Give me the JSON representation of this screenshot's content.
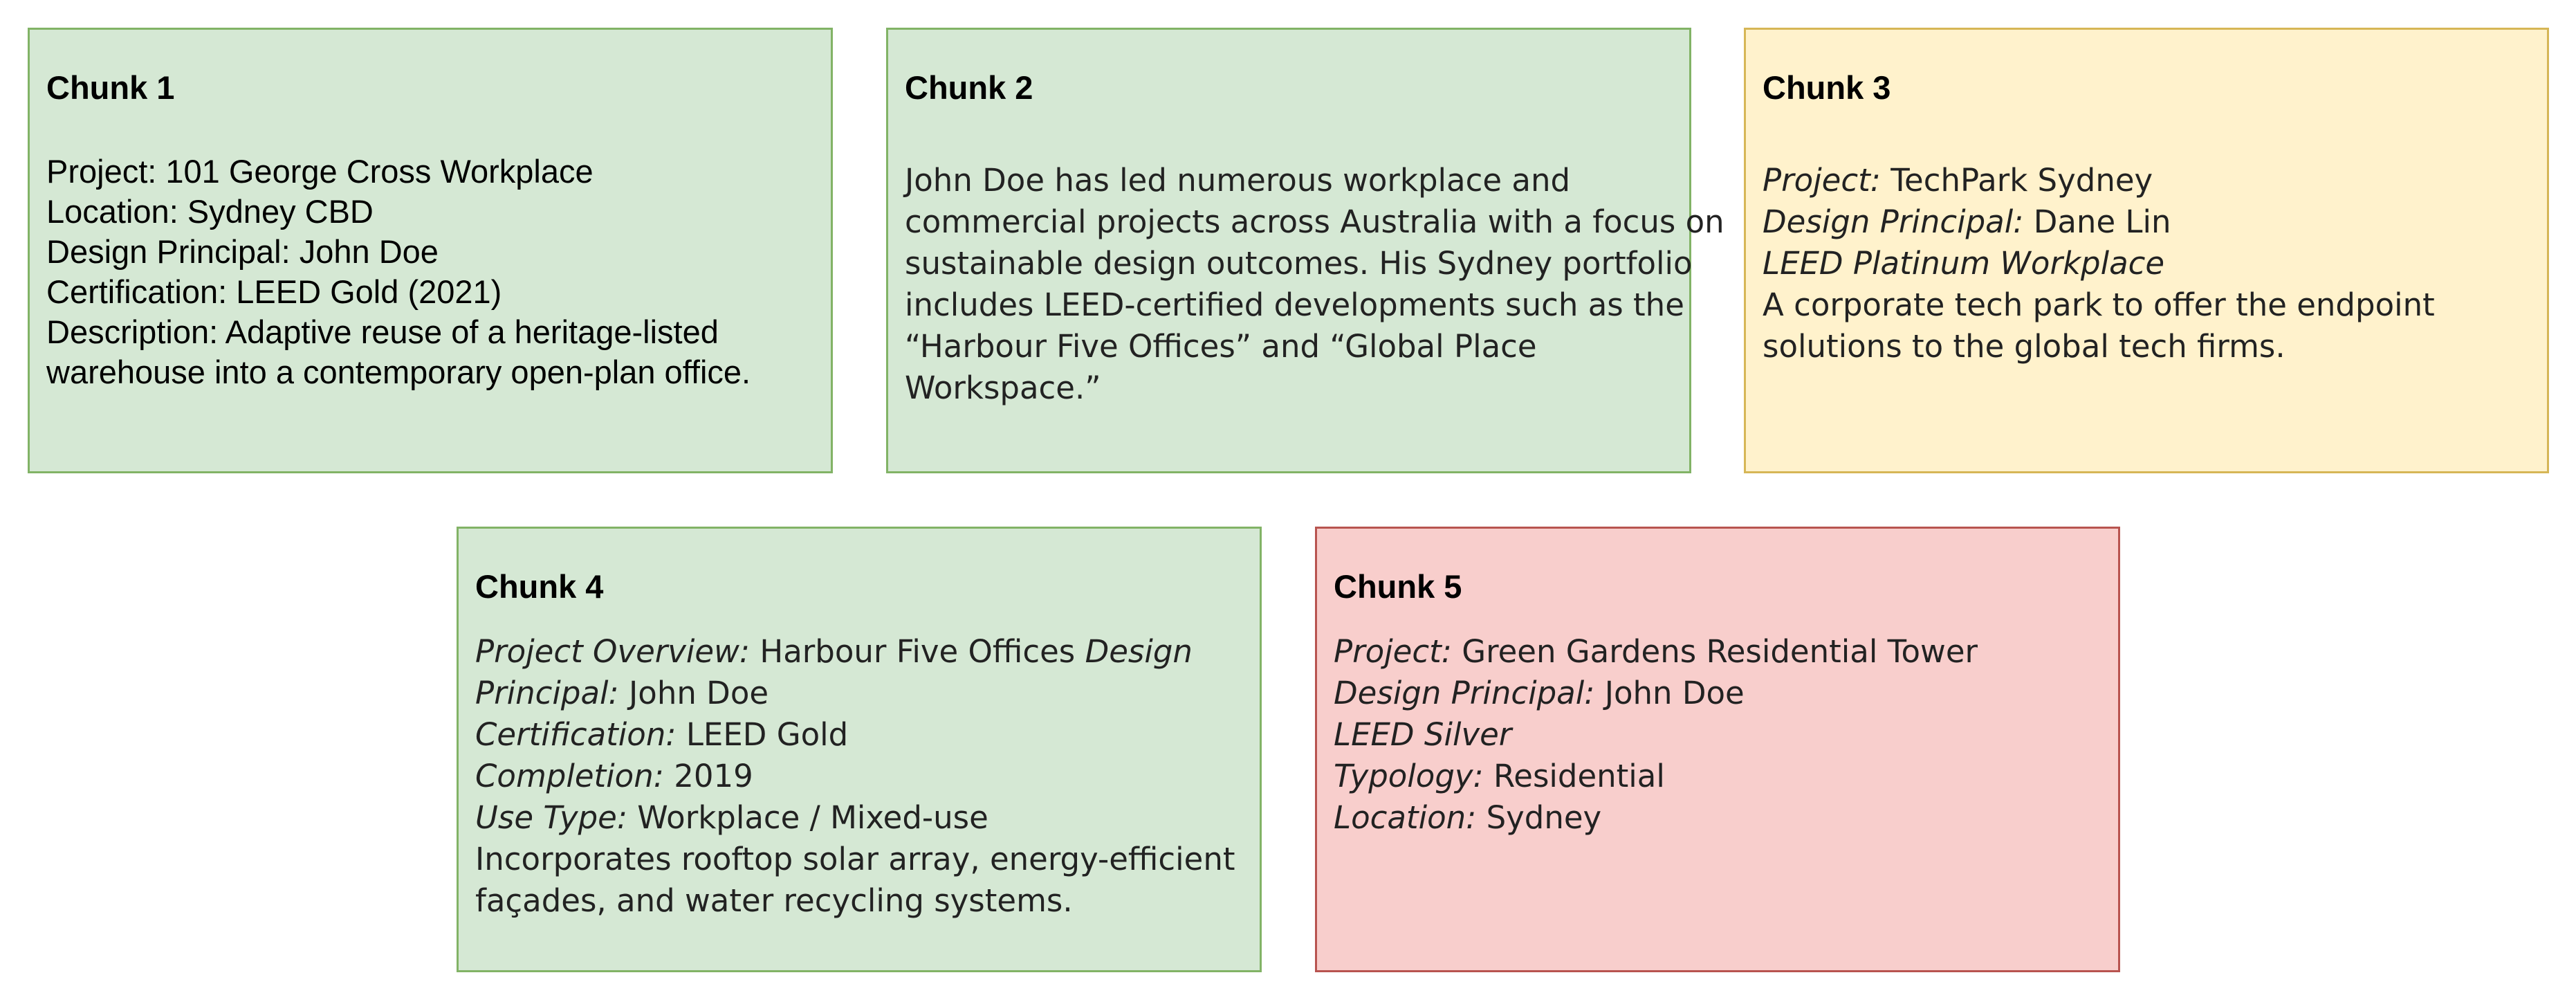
{
  "chunks": [
    {
      "title": "Chunk 1",
      "color": "#d5e8d4",
      "border_color": "#82b366",
      "lines": [
        "Project: 101 George Cross Workplace",
        "Location: Sydney CBD",
        "Design Principal: John Doe",
        "Certification: LEED Gold (2021)",
        "Description: Adaptive reuse of a heritage-listed",
        "warehouse into a contemporary open-plan office."
      ]
    },
    {
      "title": "Chunk 2",
      "color": "#d5e8d4",
      "border_color": "#82b366",
      "lines": [
        "John Doe has led numerous workplace and",
        "commercial projects across Australia with a focus on",
        "sustainable design outcomes. His Sydney portfolio",
        "includes LEED-certified developments such as the",
        "“Harbour Five Offices” and “Global Place",
        "Workspace.”"
      ]
    },
    {
      "title": "Chunk 3",
      "color": "#fff2cc",
      "border_color": "#d6b656",
      "project_label": "Project:",
      "project_value": " TechPark Sydney",
      "principal_label": "Design Principal:",
      "principal_value": " Dane Lin",
      "leed": "LEED Platinum Workplace",
      "desc_line1": "A corporate tech park to offer the endpoint",
      "desc_line2": "solutions to the global tech firms."
    },
    {
      "title": "Chunk 4",
      "color": "#d5e8d4",
      "border_color": "#82b366",
      "overview_label": "Project Overview:",
      "overview_value": " Harbour Five Offices ",
      "design_word": "Design",
      "principal_word": "Principal:",
      "principal_value": " John Doe",
      "cert_label": "Certification:",
      "cert_value": " LEED Gold",
      "completion_label": "Completion:",
      "completion_value": " 2019",
      "use_label": "Use Type:",
      "use_value": " Workplace / Mixed-use",
      "desc_line1": "Incorporates rooftop solar array, energy-efficient",
      "desc_line2": "façades, and water recycling systems."
    },
    {
      "title": "Chunk 5",
      "color": "#f8cecc",
      "border_color": "#b85450",
      "project_label": "Project:",
      "project_value": " Green Gardens Residential Tower",
      "principal_label": "Design Principal:",
      "principal_value": " John Doe",
      "leed": "LEED Silver",
      "typology_label": "Typology:",
      "typology_value": " Residential",
      "location_label": "Location:",
      "location_value": " Sydney"
    }
  ]
}
